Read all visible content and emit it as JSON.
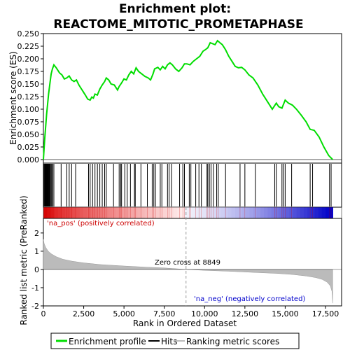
{
  "chart_data": {
    "type": "line",
    "title_line1": "Enrichment plot:",
    "title_line2": "REACTOME_MITOTIC_PROMETAPHASE",
    "ylabel_top": "Enrichment score (ES)",
    "ylabel_bottom": "Ranked list metric (PreRanked)",
    "xlabel": "Rank in Ordered Dataset",
    "xlim": [
      0,
      18500
    ],
    "es_ylim": [
      -0.007,
      0.25
    ],
    "es_yticks": [
      "0.000",
      "0.025",
      "0.050",
      "0.075",
      "0.100",
      "0.125",
      "0.150",
      "0.175",
      "0.200",
      "0.225",
      "0.250"
    ],
    "es_ytick_values": [
      0,
      0.025,
      0.05,
      0.075,
      0.1,
      0.125,
      0.15,
      0.175,
      0.2,
      0.225,
      0.25
    ],
    "xticks": [
      "0",
      "2,500",
      "5,000",
      "7,500",
      "10,000",
      "12,500",
      "15,000",
      "17,500"
    ],
    "xtick_values": [
      0,
      2500,
      5000,
      7500,
      10000,
      12500,
      15000,
      17500
    ],
    "metric_ylim": [
      -2,
      2.8
    ],
    "metric_yticks": [
      "-2",
      "-1",
      "0",
      "1",
      "2"
    ],
    "metric_ytick_values": [
      -2,
      -1,
      0,
      1,
      2
    ],
    "zero_cross_label": "Zero cross at 8849",
    "zero_cross": 8849,
    "pos_label": "'na_pos' (positively correlated)",
    "neg_label": "'na_neg' (negatively correlated)",
    "legend": [
      "Enrichment profile",
      "Hits",
      "Ranking metric scores"
    ],
    "colors": {
      "es": "#00dd00",
      "hits": "#000000",
      "metric": "#bbbbbb",
      "pos": "#cc0000",
      "neg": "#0000cc",
      "zero_line": "#999999"
    },
    "es_points": [
      [
        0,
        0.0
      ],
      [
        40,
        0.02
      ],
      [
        90,
        0.045
      ],
      [
        150,
        0.07
      ],
      [
        200,
        0.09
      ],
      [
        260,
        0.11
      ],
      [
        320,
        0.13
      ],
      [
        400,
        0.15
      ],
      [
        480,
        0.17
      ],
      [
        560,
        0.18
      ],
      [
        650,
        0.188
      ],
      [
        800,
        0.182
      ],
      [
        1000,
        0.172
      ],
      [
        1150,
        0.168
      ],
      [
        1300,
        0.16
      ],
      [
        1450,
        0.162
      ],
      [
        1600,
        0.166
      ],
      [
        1750,
        0.158
      ],
      [
        1900,
        0.155
      ],
      [
        2050,
        0.158
      ],
      [
        2200,
        0.148
      ],
      [
        2400,
        0.138
      ],
      [
        2600,
        0.128
      ],
      [
        2750,
        0.12
      ],
      [
        2900,
        0.118
      ],
      [
        3000,
        0.124
      ],
      [
        3100,
        0.122
      ],
      [
        3200,
        0.13
      ],
      [
        3350,
        0.128
      ],
      [
        3500,
        0.14
      ],
      [
        3650,
        0.148
      ],
      [
        3800,
        0.155
      ],
      [
        3900,
        0.162
      ],
      [
        4050,
        0.158
      ],
      [
        4200,
        0.15
      ],
      [
        4400,
        0.148
      ],
      [
        4600,
        0.138
      ],
      [
        4700,
        0.145
      ],
      [
        4850,
        0.152
      ],
      [
        5000,
        0.16
      ],
      [
        5150,
        0.158
      ],
      [
        5300,
        0.168
      ],
      [
        5450,
        0.175
      ],
      [
        5600,
        0.17
      ],
      [
        5750,
        0.182
      ],
      [
        5900,
        0.175
      ],
      [
        6100,
        0.17
      ],
      [
        6300,
        0.165
      ],
      [
        6500,
        0.162
      ],
      [
        6650,
        0.158
      ],
      [
        6800,
        0.17
      ],
      [
        6900,
        0.18
      ],
      [
        7100,
        0.183
      ],
      [
        7250,
        0.178
      ],
      [
        7400,
        0.185
      ],
      [
        7550,
        0.18
      ],
      [
        7700,
        0.188
      ],
      [
        7850,
        0.192
      ],
      [
        8000,
        0.188
      ],
      [
        8200,
        0.18
      ],
      [
        8400,
        0.175
      ],
      [
        8600,
        0.182
      ],
      [
        8750,
        0.19
      ],
      [
        8900,
        0.19
      ],
      [
        9100,
        0.188
      ],
      [
        9300,
        0.195
      ],
      [
        9500,
        0.2
      ],
      [
        9700,
        0.205
      ],
      [
        9900,
        0.215
      ],
      [
        10050,
        0.218
      ],
      [
        10200,
        0.222
      ],
      [
        10350,
        0.232
      ],
      [
        10500,
        0.23
      ],
      [
        10650,
        0.228
      ],
      [
        10800,
        0.236
      ],
      [
        10950,
        0.232
      ],
      [
        11100,
        0.228
      ],
      [
        11300,
        0.218
      ],
      [
        11500,
        0.205
      ],
      [
        11700,
        0.195
      ],
      [
        11900,
        0.185
      ],
      [
        12100,
        0.182
      ],
      [
        12300,
        0.183
      ],
      [
        12500,
        0.178
      ],
      [
        12750,
        0.168
      ],
      [
        13000,
        0.162
      ],
      [
        13300,
        0.148
      ],
      [
        13600,
        0.13
      ],
      [
        13900,
        0.115
      ],
      [
        14200,
        0.1
      ],
      [
        14450,
        0.112
      ],
      [
        14600,
        0.105
      ],
      [
        14800,
        0.102
      ],
      [
        15000,
        0.118
      ],
      [
        15200,
        0.112
      ],
      [
        15450,
        0.108
      ],
      [
        15700,
        0.1
      ],
      [
        16000,
        0.088
      ],
      [
        16300,
        0.075
      ],
      [
        16550,
        0.06
      ],
      [
        16800,
        0.058
      ],
      [
        17100,
        0.045
      ],
      [
        17400,
        0.025
      ],
      [
        17700,
        0.008
      ],
      [
        17950,
        0.0
      ]
    ],
    "hits": [
      30,
      60,
      95,
      120,
      150,
      175,
      200,
      230,
      260,
      290,
      320,
      350,
      380,
      420,
      470,
      520,
      580,
      650,
      1100,
      1450,
      1600,
      1750,
      2000,
      2800,
      2900,
      3050,
      3200,
      3350,
      3500,
      3650,
      3800,
      3900,
      4350,
      4700,
      4800,
      4850,
      5050,
      5200,
      5400,
      5650,
      5700,
      6050,
      6450,
      6750,
      6850,
      6950,
      7250,
      7350,
      7700,
      7800,
      7950,
      8450,
      8650,
      8750,
      9050,
      9150,
      9450,
      9650,
      9800,
      10150,
      10200,
      10300,
      10400,
      10550,
      10750,
      10850,
      11300,
      12200,
      12500,
      13150,
      14350,
      14450,
      14800,
      14900,
      15000,
      15400,
      16550,
      16700,
      17750,
      17850
    ],
    "metric_curve": [
      [
        0,
        1.65
      ],
      [
        50,
        1.4
      ],
      [
        150,
        1.2
      ],
      [
        300,
        1.0
      ],
      [
        500,
        0.85
      ],
      [
        800,
        0.7
      ],
      [
        1200,
        0.56
      ],
      [
        1800,
        0.45
      ],
      [
        2500,
        0.36
      ],
      [
        3500,
        0.27
      ],
      [
        5000,
        0.19
      ],
      [
        6500,
        0.12
      ],
      [
        7500,
        0.08
      ],
      [
        8849,
        0.0
      ],
      [
        10000,
        -0.05
      ],
      [
        11500,
        -0.1
      ],
      [
        13000,
        -0.16
      ],
      [
        14500,
        -0.22
      ],
      [
        15500,
        -0.28
      ],
      [
        16300,
        -0.36
      ],
      [
        16900,
        -0.45
      ],
      [
        17300,
        -0.55
      ],
      [
        17600,
        -0.7
      ],
      [
        17800,
        -0.9
      ],
      [
        17900,
        -1.2
      ],
      [
        17950,
        -1.85
      ]
    ]
  }
}
